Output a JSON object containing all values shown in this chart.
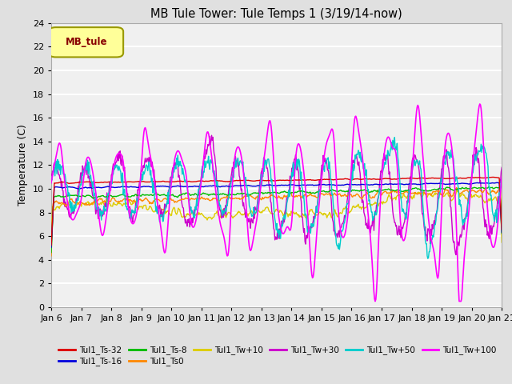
{
  "title": "MB Tule Tower: Tule Temps 1 (3/19/14-now)",
  "ylabel": "Temperature (C)",
  "ylim": [
    0,
    24
  ],
  "yticks": [
    0,
    2,
    4,
    6,
    8,
    10,
    12,
    14,
    16,
    18,
    20,
    22,
    24
  ],
  "xtick_labels": [
    "Jan 6",
    "Jan 7",
    "Jan 8",
    "Jan 9",
    "Jan 10",
    "Jan 11",
    "Jan 12",
    "Jan 13",
    "Jan 14",
    "Jan 15",
    "Jan 16",
    "Jan 17",
    "Jan 18",
    "Jan 19",
    "Jan 20",
    "Jan 21"
  ],
  "n_days": 15,
  "fig_bg": "#e0e0e0",
  "plot_bg": "#f0f0f0",
  "grid_color": "#ffffff",
  "series": {
    "Tul1_Ts-32": {
      "color": "#dd0000",
      "lw": 1.0,
      "zorder": 5
    },
    "Tul1_Ts-16": {
      "color": "#0000dd",
      "lw": 1.0,
      "zorder": 4
    },
    "Tul1_Ts-8": {
      "color": "#00bb00",
      "lw": 1.0,
      "zorder": 4
    },
    "Tul1_Ts0": {
      "color": "#ff8800",
      "lw": 1.0,
      "zorder": 4
    },
    "Tul1_Tw+10": {
      "color": "#ddcc00",
      "lw": 1.0,
      "zorder": 3
    },
    "Tul1_Tw+30": {
      "color": "#cc00cc",
      "lw": 1.0,
      "zorder": 3
    },
    "Tul1_Tw+50": {
      "color": "#00cccc",
      "lw": 1.0,
      "zorder": 6
    },
    "Tul1_Tw+100": {
      "color": "#ff00ff",
      "lw": 1.2,
      "zorder": 7
    }
  },
  "legend_label": "MB_tule",
  "legend_text_color": "#880000",
  "legend_bg": "#ffff99",
  "legend_border": "#999900",
  "legend_items_row1": [
    "Tul1_Ts-32",
    "Tul1_Ts-16",
    "Tul1_Ts-8",
    "Tul1_Ts0",
    "Tul1_Tw+10",
    "Tul1_Tw+30"
  ],
  "legend_items_row2": [
    "Tul1_Tw+50",
    "Tul1_Tw+100"
  ]
}
